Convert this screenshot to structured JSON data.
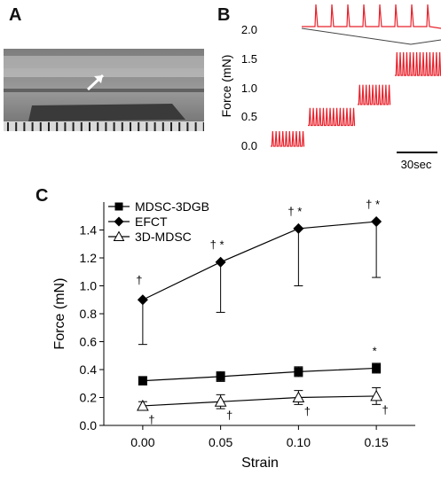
{
  "panel_labels": {
    "a": "A",
    "b": "B",
    "c": "C"
  },
  "panel_b": {
    "ylabel": "Force (mN)",
    "yticks": [
      "2.0",
      "1.5",
      "1.0",
      "0.5",
      "0.0"
    ],
    "scalebar_label": "30sec",
    "trace_color": "#e8202a"
  },
  "chart_data": [
    {
      "type": "line",
      "title": "",
      "xlabel": "Strain",
      "ylabel": "Force (mN)",
      "categories": [
        "0.00",
        "0.05",
        "0.10",
        "0.15"
      ],
      "x": [
        0.0,
        0.05,
        0.1,
        0.15
      ],
      "xlim": [
        -0.025,
        0.175
      ],
      "ylim": [
        0.0,
        1.6
      ],
      "yticks": [
        "0.0",
        "0.2",
        "0.4",
        "0.6",
        "0.8",
        "1.0",
        "1.2",
        "1.4"
      ],
      "grid": false,
      "legend_position": "top-left",
      "series": [
        {
          "name": "MDSC-3DGB",
          "marker": "square",
          "values": [
            0.32,
            0.35,
            0.385,
            0.41
          ],
          "err": [
            0.03,
            0.035,
            0.035,
            0.035
          ],
          "annotations": [
            "",
            "",
            "",
            "*"
          ]
        },
        {
          "name": "EFCT",
          "marker": "diamond",
          "values": [
            0.9,
            1.17,
            1.41,
            1.46
          ],
          "err": [
            0.32,
            0.36,
            0.41,
            0.4
          ],
          "annotations": [
            "†",
            "† *",
            "† *",
            "† *"
          ]
        },
        {
          "name": "3D-MDSC",
          "marker": "triangle-open",
          "values": [
            0.14,
            0.17,
            0.2,
            0.21
          ],
          "err": [
            0.03,
            0.05,
            0.05,
            0.06
          ],
          "annotations": [
            "†",
            "†",
            "†",
            "†"
          ]
        }
      ]
    }
  ]
}
